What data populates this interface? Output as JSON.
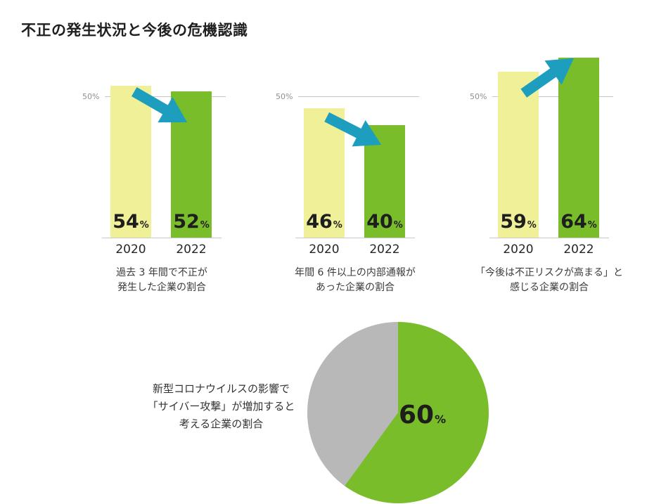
{
  "title": "不正の発生状況と今後の危機認識",
  "colors": {
    "bar_2020": "#eff098",
    "bar_2022": "#7abd2a",
    "arrow": "#1e9ebe",
    "pie_main": "#7abd2a",
    "pie_rest": "#b8b8b8",
    "axis_line": "#c4c4c4",
    "axis_text": "#8f8f8f",
    "text": "#1f1f1f"
  },
  "chart_data": [
    {
      "type": "bar",
      "categories": [
        "2020",
        "2022"
      ],
      "values": [
        54,
        52
      ],
      "unit": "%",
      "axis_label": "50%",
      "trend": "down",
      "caption": [
        "過去 3 年間で不正が",
        "発生した企業の割合"
      ]
    },
    {
      "type": "bar",
      "categories": [
        "2020",
        "2022"
      ],
      "values": [
        46,
        40
      ],
      "unit": "%",
      "axis_label": "50%",
      "trend": "down",
      "caption": [
        "年間 6 件以上の内部通報が",
        "あった企業の割合"
      ]
    },
    {
      "type": "bar",
      "categories": [
        "2020",
        "2022"
      ],
      "values": [
        59,
        64
      ],
      "unit": "%",
      "axis_label": "50%",
      "trend": "up",
      "caption": [
        "「今後は不正リスクが高まる」と",
        "感じる企業の割合"
      ]
    },
    {
      "type": "pie",
      "values": [
        60,
        40
      ],
      "unit": "%",
      "caption": [
        "新型コロナウイルスの影響で",
        "「サイバー攻撃」が増加すると",
        "考える企業の割合"
      ]
    }
  ]
}
